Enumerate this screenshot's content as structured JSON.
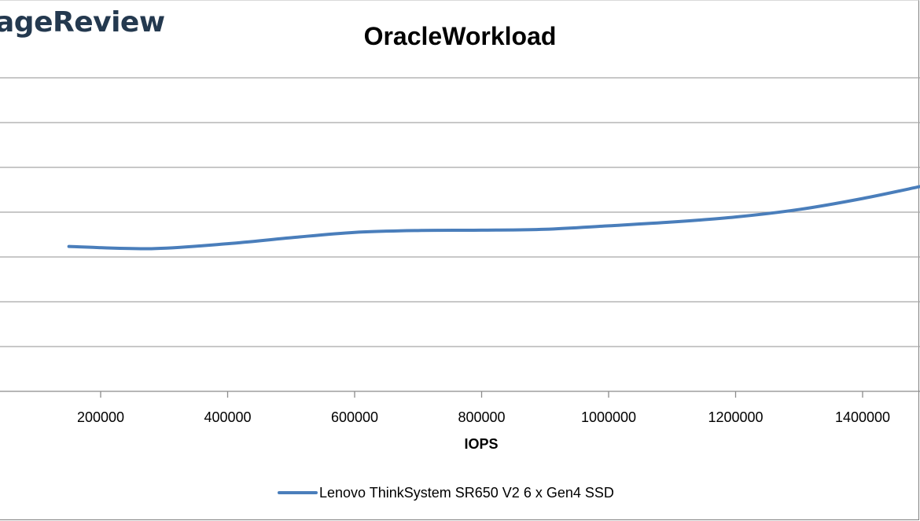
{
  "logo": {
    "text": "ageReview"
  },
  "chart_data": {
    "type": "line",
    "title": "OracleWorkload",
    "xlabel": "IOPS",
    "ylabel": "",
    "x_ticks": [
      200000,
      400000,
      600000,
      800000,
      1000000,
      1200000,
      1400000
    ],
    "xlim": [
      50000,
      1500000
    ],
    "grid": true,
    "legend_position": "bottom",
    "series": [
      {
        "name": "Lenovo ThinkSystem SR650 V2 6 x Gen4 SSD",
        "color": "#4a7ebb",
        "points": [
          [
            150000,
            0.462
          ],
          [
            280000,
            0.455
          ],
          [
            400000,
            0.471
          ],
          [
            500000,
            0.49
          ],
          [
            600000,
            0.507
          ],
          [
            700000,
            0.513
          ],
          [
            800000,
            0.514
          ],
          [
            900000,
            0.517
          ],
          [
            1000000,
            0.528
          ],
          [
            1100000,
            0.54
          ],
          [
            1200000,
            0.556
          ],
          [
            1300000,
            0.58
          ],
          [
            1400000,
            0.615
          ],
          [
            1490000,
            0.653
          ]
        ]
      }
    ]
  }
}
